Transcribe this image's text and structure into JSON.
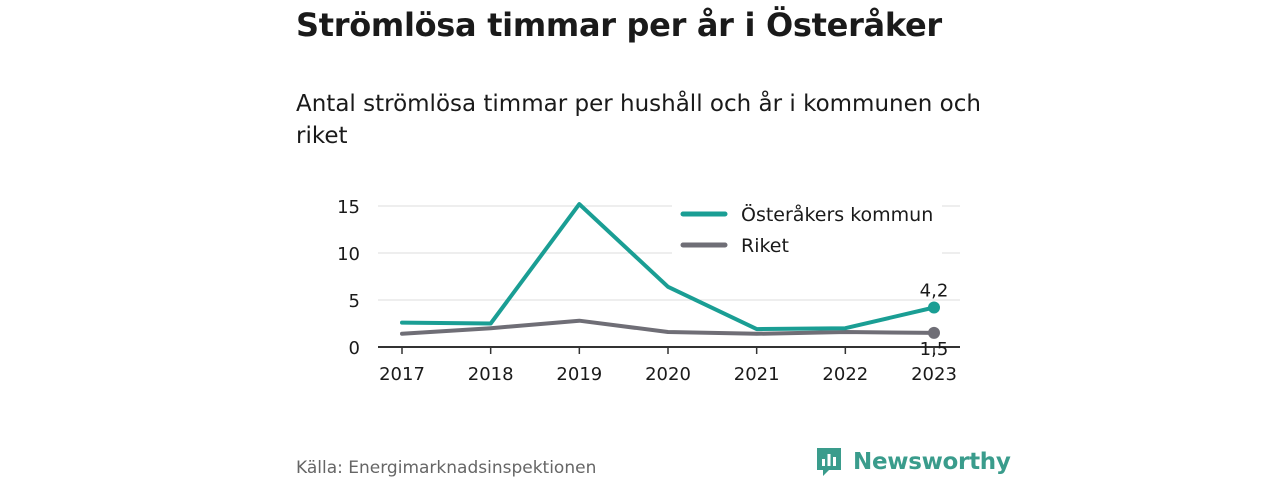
{
  "title": "Strömlösa timmar per år i Österåker",
  "subtitle": "Antal strömlösa timmar per hushåll och år i kommunen och riket",
  "source": "Källa: Energimarknadsinspektionen",
  "brand": {
    "name": "Newsworthy",
    "icon": "newsworthy-logo-icon",
    "color": "#3a9c8c"
  },
  "chart_data": {
    "type": "line",
    "x": [
      "2017",
      "2018",
      "2019",
      "2020",
      "2021",
      "2022",
      "2023"
    ],
    "yticks": [
      "0",
      "5",
      "10",
      "15"
    ],
    "ylim": [
      0,
      15
    ],
    "grid": true,
    "legend_position": "top-right",
    "series": [
      {
        "name": "Österåkers kommun",
        "color": "#1a9e94",
        "values": [
          2.6,
          2.5,
          15.2,
          6.4,
          1.9,
          2.0,
          4.2
        ],
        "end_label": "4,2"
      },
      {
        "name": "Riket",
        "color": "#6f6e76",
        "values": [
          1.4,
          2.0,
          2.8,
          1.6,
          1.4,
          1.6,
          1.5
        ],
        "end_label": "1,5"
      }
    ]
  }
}
